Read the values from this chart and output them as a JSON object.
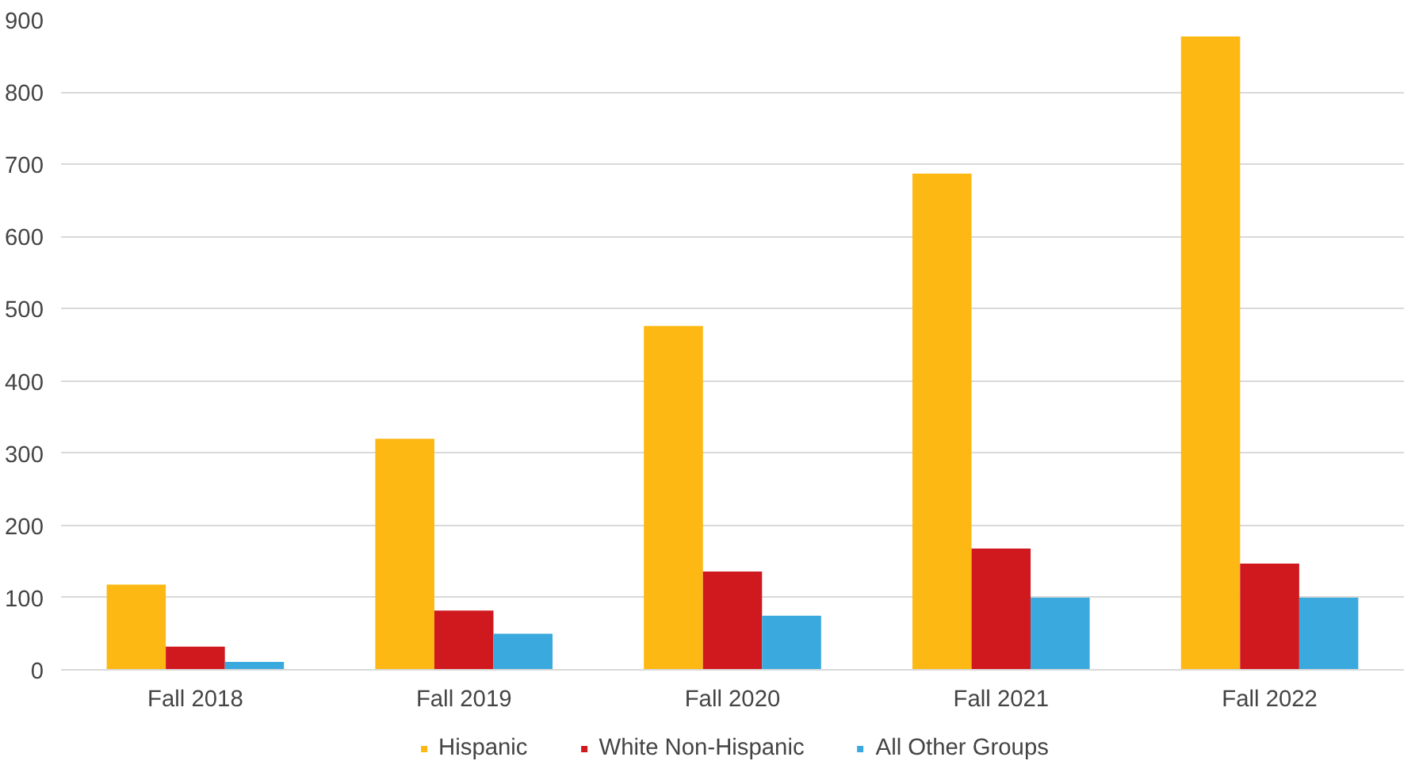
{
  "chart_data": {
    "type": "bar",
    "categories": [
      "Fall 2018",
      "Fall 2019",
      "Fall 2020",
      "Fall 2021",
      "Fall 2022"
    ],
    "series": [
      {
        "name": "Hispanic",
        "color": "#fdb813",
        "values": [
          118,
          320,
          476,
          687,
          877
        ]
      },
      {
        "name": "White Non-Hispanic",
        "color": "#d0181f",
        "values": [
          32,
          82,
          136,
          168,
          147
        ]
      },
      {
        "name": "All Other Groups",
        "color": "#3aa9de",
        "values": [
          11,
          50,
          75,
          100,
          100
        ]
      }
    ],
    "ylim": [
      0,
      900
    ],
    "yticks": [
      0,
      100,
      200,
      300,
      400,
      500,
      600,
      700,
      800,
      900
    ],
    "grid": "y",
    "legend": "bottom"
  }
}
